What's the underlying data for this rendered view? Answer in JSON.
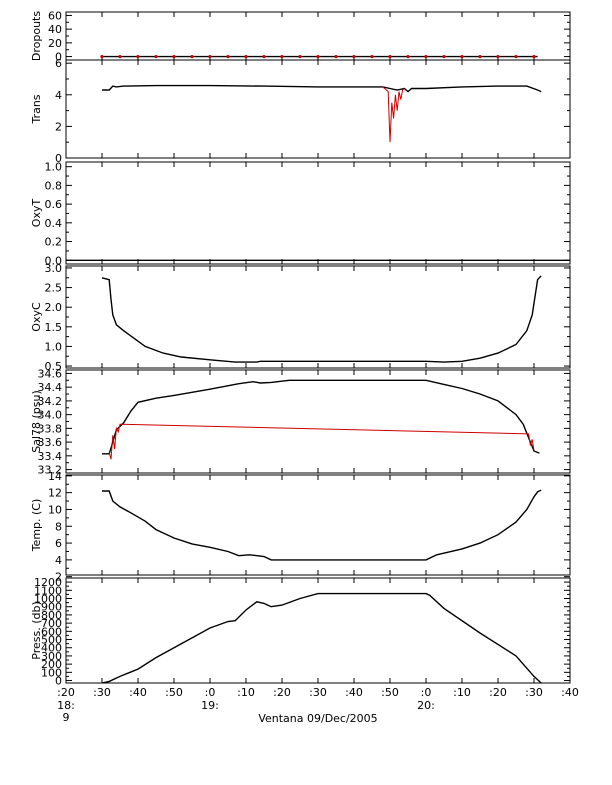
{
  "chart_data": {
    "type": "line",
    "xlabel": "Ventana 09/Dec/2005",
    "x_ticks": [
      {
        "m": -10,
        "label": ":20"
      },
      {
        "m": 0,
        "label": ":30"
      },
      {
        "m": 10,
        "label": ":40"
      },
      {
        "m": 20,
        "label": ":50"
      },
      {
        "m": 30,
        "label": ":0"
      },
      {
        "m": 40,
        "label": ":10"
      },
      {
        "m": 50,
        "label": ":20"
      },
      {
        "m": 60,
        "label": ":30"
      },
      {
        "m": 70,
        "label": ":40"
      },
      {
        "m": 80,
        "label": ":50"
      },
      {
        "m": 90,
        "label": ":0"
      },
      {
        "m": 100,
        "label": ":10"
      },
      {
        "m": 110,
        "label": ":20"
      },
      {
        "m": 120,
        "label": ":30"
      },
      {
        "m": 130,
        "label": ":40"
      }
    ],
    "hour_labels": [
      {
        "m": -10,
        "lines": [
          "18:",
          "9"
        ]
      },
      {
        "m": 30,
        "lines": [
          "19:"
        ]
      },
      {
        "m": 90,
        "lines": [
          "20:"
        ]
      }
    ],
    "xlim": [
      -10,
      130
    ],
    "panels": [
      {
        "ylabel": "Dropouts",
        "ylim": [
          -5,
          65
        ],
        "yticks": [
          0,
          20,
          40,
          60
        ],
        "ytick_labels": [
          "0",
          "20",
          "40",
          "60"
        ],
        "series": [
          {
            "color": "#000000",
            "points": [
              [
                0,
                0
              ],
              [
                121,
                0
              ]
            ]
          },
          {
            "color": "#cc0000",
            "markers": [
              0,
              5,
              10,
              15,
              20,
              25,
              30,
              35,
              40,
              45,
              50,
              55,
              60,
              65,
              70,
              75,
              80,
              85,
              90,
              95,
              100,
              105,
              110,
              115,
              120
            ],
            "marker_y": 0
          }
        ]
      },
      {
        "ylabel": "Trans",
        "ylim": [
          0,
          6.2
        ],
        "yticks": [
          0,
          2,
          4,
          6
        ],
        "ytick_labels": [
          "0",
          "2",
          "4",
          "6"
        ],
        "series": [
          {
            "color": "#000000",
            "points": [
              [
                0,
                4.3
              ],
              [
                2,
                4.3
              ],
              [
                3,
                4.55
              ],
              [
                4,
                4.5
              ],
              [
                6,
                4.55
              ],
              [
                15,
                4.58
              ],
              [
                30,
                4.58
              ],
              [
                45,
                4.55
              ],
              [
                60,
                4.5
              ],
              [
                75,
                4.5
              ],
              [
                78,
                4.5
              ],
              [
                80,
                4.4
              ],
              [
                82,
                4.3
              ],
              [
                84,
                4.4
              ],
              [
                85,
                4.2
              ],
              [
                86,
                4.4
              ],
              [
                90,
                4.4
              ],
              [
                100,
                4.5
              ],
              [
                110,
                4.55
              ],
              [
                118,
                4.55
              ],
              [
                121,
                4.3
              ],
              [
                122,
                4.2
              ]
            ]
          },
          {
            "color": "#cc0000",
            "points": [
              [
                78,
                4.5
              ],
              [
                79.5,
                4.2
              ],
              [
                80,
                1.0
              ],
              [
                80.5,
                3.5
              ],
              [
                81,
                2.5
              ],
              [
                81.5,
                4.0
              ],
              [
                82,
                3.0
              ],
              [
                82.5,
                4.2
              ],
              [
                83,
                3.7
              ],
              [
                83.5,
                4.3
              ],
              [
                84,
                4.4
              ]
            ]
          }
        ]
      },
      {
        "ylabel": "OxyT",
        "ylim": [
          -0.04,
          1.05
        ],
        "yticks": [
          0.0,
          0.2,
          0.4,
          0.6,
          0.8,
          1.0
        ],
        "ytick_labels": [
          "0.0",
          "0.2",
          "0.4",
          "0.6",
          "0.8",
          "1.0"
        ],
        "series": [
          {
            "color": "#000000",
            "points": [
              [
                -10,
                0
              ],
              [
                130,
                0
              ]
            ]
          }
        ]
      },
      {
        "ylabel": "OxyC",
        "ylim": [
          0.45,
          3.05
        ],
        "yticks": [
          0.5,
          1.0,
          1.5,
          2.0,
          2.5,
          3.0
        ],
        "ytick_labels": [
          "0.5",
          "1.0",
          "1.5",
          "2.0",
          "2.5",
          "3.0"
        ],
        "series": [
          {
            "color": "#000000",
            "points": [
              [
                0,
                2.75
              ],
              [
                2,
                2.7
              ],
              [
                2.5,
                2.2
              ],
              [
                3,
                1.8
              ],
              [
                4,
                1.55
              ],
              [
                6,
                1.4
              ],
              [
                9,
                1.2
              ],
              [
                12,
                1.0
              ],
              [
                17,
                0.83
              ],
              [
                22,
                0.73
              ],
              [
                30,
                0.66
              ],
              [
                37,
                0.6
              ],
              [
                43,
                0.6
              ],
              [
                44,
                0.62
              ],
              [
                60,
                0.62
              ],
              [
                90,
                0.62
              ],
              [
                95,
                0.6
              ],
              [
                100,
                0.62
              ],
              [
                105,
                0.7
              ],
              [
                110,
                0.83
              ],
              [
                115,
                1.05
              ],
              [
                118,
                1.4
              ],
              [
                119.5,
                1.8
              ],
              [
                120.5,
                2.4
              ],
              [
                121,
                2.7
              ],
              [
                122,
                2.8
              ]
            ]
          }
        ]
      },
      {
        "ylabel": "Sal78 (psu)",
        "ylim": [
          33.15,
          34.65
        ],
        "yticks": [
          33.2,
          33.4,
          33.6,
          33.8,
          34.0,
          34.2,
          34.4,
          34.6
        ],
        "ytick_labels": [
          "33.2",
          "33.4",
          "33.6",
          "33.8",
          "34.0",
          "34.2",
          "34.4",
          "34.6"
        ],
        "series": [
          {
            "color": "#000000",
            "points": [
              [
                0,
                33.43
              ],
              [
                2,
                33.43
              ],
              [
                3,
                33.6
              ],
              [
                4,
                33.78
              ],
              [
                6,
                33.88
              ],
              [
                8,
                34.05
              ],
              [
                10,
                34.18
              ],
              [
                15,
                34.24
              ],
              [
                20,
                34.28
              ],
              [
                30,
                34.37
              ],
              [
                38,
                34.45
              ],
              [
                42,
                34.48
              ],
              [
                44,
                34.46
              ],
              [
                47,
                34.47
              ],
              [
                52,
                34.5
              ],
              [
                60,
                34.5
              ],
              [
                75,
                34.5
              ],
              [
                90,
                34.5
              ],
              [
                95,
                34.44
              ],
              [
                100,
                34.38
              ],
              [
                105,
                34.3
              ],
              [
                110,
                34.2
              ],
              [
                115,
                34.0
              ],
              [
                117,
                33.86
              ],
              [
                119,
                33.6
              ],
              [
                120,
                33.47
              ],
              [
                121.5,
                33.44
              ]
            ]
          },
          {
            "color": "#cc0000",
            "points": [
              [
                2,
                33.45
              ],
              [
                2.5,
                33.35
              ],
              [
                3,
                33.7
              ],
              [
                3.5,
                33.5
              ],
              [
                4,
                33.8
              ],
              [
                4.5,
                33.75
              ],
              [
                5,
                33.86
              ],
              [
                118.5,
                33.72
              ],
              [
                119,
                33.55
              ],
              [
                119.5,
                33.64
              ],
              [
                120,
                33.48
              ]
            ]
          }
        ]
      },
      {
        "ylabel": "Temp. (C)",
        "ylim": [
          2.2,
          14.1
        ],
        "yticks": [
          2,
          4,
          6,
          8,
          10,
          12,
          14
        ],
        "ytick_labels": [
          "2",
          "4",
          "6",
          "8",
          "10",
          "12",
          "14"
        ],
        "series": [
          {
            "color": "#000000",
            "points": [
              [
                0,
                12.2
              ],
              [
                2,
                12.2
              ],
              [
                3,
                11.0
              ],
              [
                5,
                10.3
              ],
              [
                8,
                9.6
              ],
              [
                12,
                8.6
              ],
              [
                15,
                7.6
              ],
              [
                20,
                6.6
              ],
              [
                25,
                5.9
              ],
              [
                30,
                5.5
              ],
              [
                35,
                5.0
              ],
              [
                38,
                4.5
              ],
              [
                41,
                4.6
              ],
              [
                45,
                4.4
              ],
              [
                47,
                4.0
              ],
              [
                55,
                4.0
              ],
              [
                60,
                4.0
              ],
              [
                70,
                4.0
              ],
              [
                80,
                4.0
              ],
              [
                90,
                4.0
              ],
              [
                93,
                4.6
              ],
              [
                100,
                5.3
              ],
              [
                105,
                6.0
              ],
              [
                110,
                7.0
              ],
              [
                115,
                8.5
              ],
              [
                118,
                10.0
              ],
              [
                120,
                11.5
              ],
              [
                121,
                12.1
              ],
              [
                122,
                12.3
              ]
            ]
          }
        ]
      },
      {
        "ylabel": "Press. (db)",
        "ylim": [
          -30,
          1250
        ],
        "yticks": [
          0,
          100,
          200,
          300,
          400,
          500,
          600,
          700,
          800,
          900,
          1000,
          1100,
          1200
        ],
        "ytick_labels": [
          "0",
          "100",
          "200",
          "300",
          "400",
          "500",
          "600",
          "700",
          "800",
          "900",
          "1000",
          "1100",
          "1200"
        ],
        "series": [
          {
            "color": "#000000",
            "points": [
              [
                0,
                -30
              ],
              [
                2,
                -10
              ],
              [
                5,
                50
              ],
              [
                10,
                140
              ],
              [
                15,
                280
              ],
              [
                20,
                400
              ],
              [
                25,
                520
              ],
              [
                30,
                640
              ],
              [
                35,
                720
              ],
              [
                37,
                730
              ],
              [
                40,
                860
              ],
              [
                43,
                960
              ],
              [
                45,
                940
              ],
              [
                47,
                900
              ],
              [
                50,
                920
              ],
              [
                55,
                1000
              ],
              [
                60,
                1060
              ],
              [
                70,
                1060
              ],
              [
                80,
                1060
              ],
              [
                90,
                1060
              ],
              [
                91,
                1040
              ],
              [
                95,
                880
              ],
              [
                105,
                580
              ],
              [
                115,
                300
              ],
              [
                120,
                50
              ],
              [
                122,
                -30
              ]
            ]
          }
        ]
      }
    ]
  }
}
